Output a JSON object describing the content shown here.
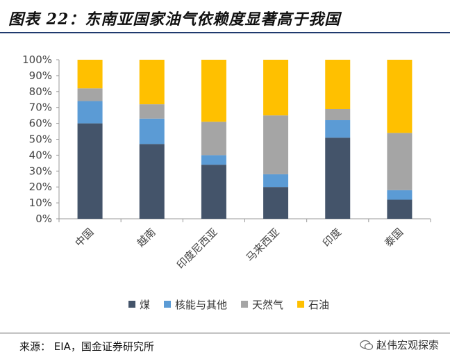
{
  "title": "图表 22：东南亚国家油气依赖度显著高于我国",
  "source": "来源：   EIA，国金证券研究所",
  "watermark": "赵伟宏观探索",
  "chart_data": {
    "type": "bar",
    "stacked": true,
    "categories": [
      "中国",
      "越南",
      "印度尼西亚",
      "马来西亚",
      "印度",
      "泰国"
    ],
    "yticks": [
      "0%",
      "10%",
      "20%",
      "30%",
      "40%",
      "50%",
      "60%",
      "70%",
      "80%",
      "90%",
      "100%"
    ],
    "ylim": [
      0,
      100
    ],
    "series": [
      {
        "name": "煤",
        "color": "#44546a",
        "values": [
          60,
          47,
          34,
          20,
          51,
          12
        ]
      },
      {
        "name": "核能与其他",
        "color": "#5b9bd5",
        "values": [
          14,
          16,
          6,
          8,
          11,
          6
        ]
      },
      {
        "name": "天然气",
        "color": "#a5a5a5",
        "values": [
          8,
          9,
          21,
          37,
          7,
          36
        ]
      },
      {
        "name": "石油",
        "color": "#ffc000",
        "values": [
          18,
          28,
          39,
          35,
          31,
          46
        ]
      }
    ],
    "legend_position": "bottom"
  }
}
